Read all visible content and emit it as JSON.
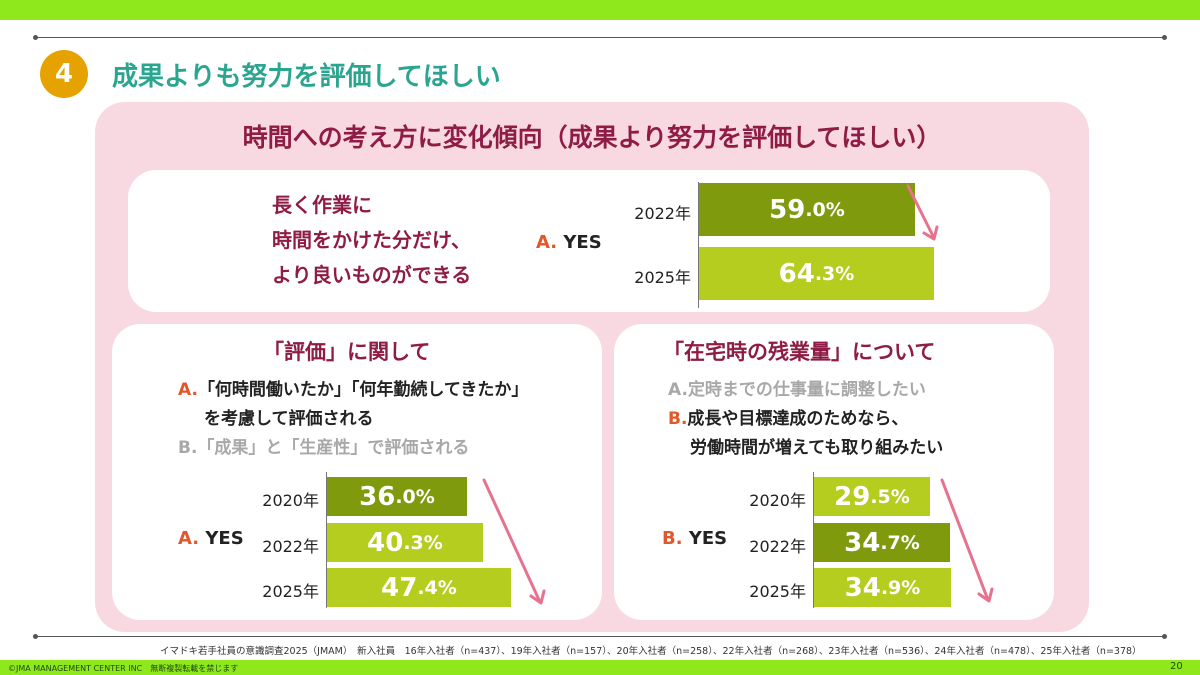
{
  "section": {
    "number": "4",
    "title": "成果よりも努力を評価してほしい"
  },
  "main_title": "時間への考え方に変化傾向（成果より努力を評価してほしい）",
  "colors": {
    "accent_dark": "#7f9a0c",
    "accent_light": "#b4cd1f",
    "title": "#8e1c45",
    "heading": "#2aa58f",
    "arrow": "#e8718e"
  },
  "panel1": {
    "question_lines": [
      "長く作業に",
      "時間をかけた分だけ、",
      "より良いものができる"
    ],
    "answer_letter": "A.",
    "answer_text": "YES"
  },
  "panel2": {
    "subtitle": "「評価」に関して",
    "option_a_letter": "A.",
    "option_a_line1": "「何時間働いたか」「何年勤続してきたか」",
    "option_a_line2": "を考慮して評価される",
    "option_b_letter": "B.",
    "option_b_text": "「成果」と「生産性」で評価される",
    "answer_letter": "A.",
    "answer_text": "YES"
  },
  "panel3": {
    "subtitle": "「在宅時の残業量」について",
    "option_a_letter": "A.",
    "option_a_text": "定時までの仕事量に調整したい",
    "option_b_letter": "B.",
    "option_b_line1": "成長や目標達成のためなら、",
    "option_b_line2": "労働時間が増えても取り組みたい",
    "answer_letter": "B.",
    "answer_text": "YES"
  },
  "chart_data": [
    {
      "type": "bar",
      "orientation": "horizontal",
      "categories": [
        "2022年",
        "2025年"
      ],
      "values": [
        59.0,
        64.3
      ],
      "labels": [
        {
          "int": "59",
          "dec": ".0%"
        },
        {
          "int": "64",
          "dec": ".3%"
        }
      ],
      "unit": "%"
    },
    {
      "type": "bar",
      "orientation": "horizontal",
      "categories": [
        "2020年",
        "2022年",
        "2025年"
      ],
      "values": [
        36.0,
        40.3,
        47.4
      ],
      "labels": [
        {
          "int": "36",
          "dec": ".0%"
        },
        {
          "int": "40",
          "dec": ".3%"
        },
        {
          "int": "47",
          "dec": ".4%"
        }
      ],
      "unit": "%"
    },
    {
      "type": "bar",
      "orientation": "horizontal",
      "categories": [
        "2020年",
        "2022年",
        "2025年"
      ],
      "values": [
        29.5,
        34.7,
        34.9
      ],
      "labels": [
        {
          "int": "29",
          "dec": ".5%"
        },
        {
          "int": "34",
          "dec": ".7%"
        },
        {
          "int": "34",
          "dec": ".9%"
        }
      ],
      "unit": "%"
    }
  ],
  "footnote": "イマドキ若手社員の意識調査2025（JMAM）　新入社員　16年入社者（n=437）、19年入社者（n=157）、20年入社者（n=258）、22年入社者（n=268）、23年入社者（n=536）、24年入社者（n=478）、25年入社者（n=378）",
  "copyright": "©JMA MANAGEMENT CENTER INC　無断複製転載を禁じます",
  "page_number": "20"
}
